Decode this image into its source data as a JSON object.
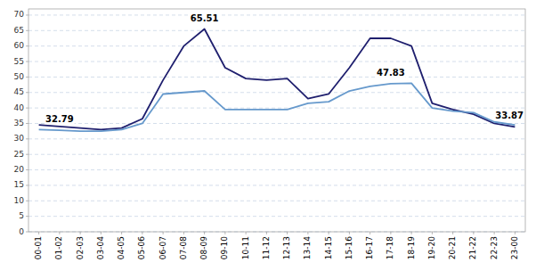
{
  "chart_data": {
    "type": "line",
    "categories": [
      "00-01",
      "01-02",
      "02-03",
      "03-04",
      "04-05",
      "05-06",
      "06-07",
      "07-08",
      "08-09",
      "09-10",
      "10-11",
      "11-12",
      "12-13",
      "13-14",
      "14-15",
      "15-16",
      "16-17",
      "17-18",
      "18-19",
      "19-20",
      "20-21",
      "21-22",
      "22-23",
      "23-00"
    ],
    "series": [
      {
        "color": "#1f1f6e",
        "values": [
          34.5,
          34.0,
          33.5,
          33.0,
          33.5,
          36.5,
          49.0,
          60.0,
          65.51,
          53.0,
          49.5,
          49.0,
          49.5,
          43.0,
          44.5,
          53.0,
          62.5,
          62.5,
          60.0,
          41.5,
          39.5,
          38.0,
          35.0,
          33.87
        ]
      },
      {
        "color": "#6699cc",
        "values": [
          33.0,
          32.79,
          32.5,
          32.5,
          33.0,
          35.0,
          44.5,
          45.0,
          45.5,
          39.5,
          39.5,
          39.5,
          39.5,
          41.5,
          42.0,
          45.5,
          47.0,
          47.83,
          48.0,
          40.0,
          39.0,
          38.5,
          35.5,
          34.5
        ]
      }
    ],
    "annotations": [
      {
        "text": "32.79",
        "category": "01-02",
        "y": 32.79
      },
      {
        "text": "65.51",
        "category": "08-09",
        "y": 65.51
      },
      {
        "text": "47.83",
        "category": "17-18",
        "y": 47.83
      },
      {
        "text": "33.87",
        "category": "23-00",
        "y": 33.87
      }
    ],
    "ylim": [
      0,
      72
    ],
    "yticks": [
      0,
      5,
      10,
      15,
      20,
      25,
      30,
      35,
      40,
      45,
      50,
      55,
      60,
      65,
      70
    ],
    "grid": true
  }
}
